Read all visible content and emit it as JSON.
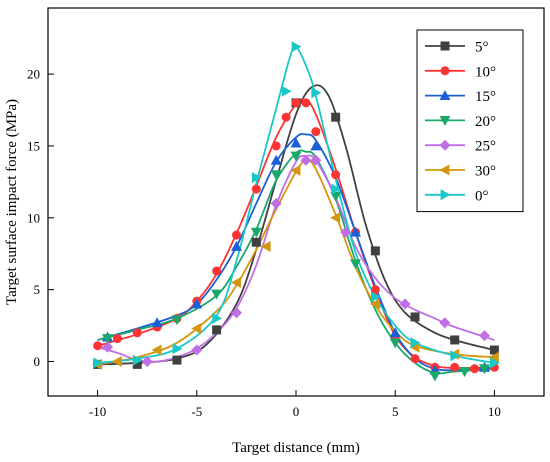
{
  "chart_data": {
    "type": "line",
    "title": "",
    "xlabel": "Target distance (mm)",
    "ylabel": "Target surface impact force (MPa)",
    "xlim": [
      -12.5,
      12.5
    ],
    "ylim": [
      -2.4,
      24.6
    ],
    "xticks": [
      -10,
      -5,
      0,
      5,
      10
    ],
    "yticks": [
      0,
      5,
      10,
      15,
      20
    ],
    "grid": false,
    "legend_position": "top-right",
    "series": [
      {
        "name": "5°",
        "color": "#404040",
        "marker": "square",
        "points": [
          [
            -10,
            -0.2
          ],
          [
            -8,
            -0.2
          ],
          [
            -6,
            0.1
          ],
          [
            -4,
            2.2
          ],
          [
            -2,
            8.3
          ],
          [
            0,
            18
          ],
          [
            2,
            17
          ],
          [
            4,
            7.7
          ],
          [
            6,
            3.1
          ],
          [
            8,
            1.5
          ],
          [
            10,
            0.8
          ]
        ],
        "curve": [
          [
            -10,
            -0.2
          ],
          [
            -8,
            -0.1
          ],
          [
            -6,
            0.2
          ],
          [
            -4.5,
            1.2
          ],
          [
            -3,
            4
          ],
          [
            -2,
            7.8
          ],
          [
            -1,
            12.6
          ],
          [
            0,
            17.2
          ],
          [
            0.8,
            19.1
          ],
          [
            1.6,
            18.6
          ],
          [
            2.5,
            15
          ],
          [
            3.5,
            9.6
          ],
          [
            4.5,
            5.6
          ],
          [
            5.5,
            3.4
          ],
          [
            7,
            2
          ],
          [
            8.5,
            1.3
          ],
          [
            10,
            0.8
          ]
        ]
      },
      {
        "name": "10°",
        "color": "#ff3333",
        "marker": "circle",
        "points": [
          [
            -10,
            1.1
          ],
          [
            -9,
            1.6
          ],
          [
            -8,
            2
          ],
          [
            -7,
            2.4
          ],
          [
            -6,
            3
          ],
          [
            -5,
            4.2
          ],
          [
            -4,
            6.3
          ],
          [
            -3,
            8.8
          ],
          [
            -2,
            12
          ],
          [
            -1,
            15
          ],
          [
            -0.5,
            17
          ],
          [
            0,
            18
          ],
          [
            0.5,
            18
          ],
          [
            1,
            16
          ],
          [
            2,
            13
          ],
          [
            3,
            9
          ],
          [
            4,
            5
          ],
          [
            5,
            1.6
          ],
          [
            6,
            0.2
          ],
          [
            7,
            -0.4
          ],
          [
            8,
            -0.4
          ],
          [
            9,
            -0.5
          ],
          [
            10,
            -0.4
          ]
        ],
        "curve": [
          [
            -10,
            1.1
          ],
          [
            -8,
            1.9
          ],
          [
            -6,
            3
          ],
          [
            -5,
            4.2
          ],
          [
            -4,
            6.1
          ],
          [
            -3,
            8.9
          ],
          [
            -2,
            12.2
          ],
          [
            -1,
            15.6
          ],
          [
            0,
            17.9
          ],
          [
            0.5,
            18.2
          ],
          [
            1,
            17.2
          ],
          [
            2,
            13.4
          ],
          [
            3,
            9
          ],
          [
            4,
            5
          ],
          [
            5,
            1.8
          ],
          [
            6,
            0.3
          ],
          [
            7,
            -0.3
          ],
          [
            8,
            -0.45
          ],
          [
            10,
            -0.4
          ]
        ]
      },
      {
        "name": "15°",
        "color": "#1a5fd6",
        "marker": "triangle-up",
        "points": [
          [
            -9.5,
            1.7
          ],
          [
            -7,
            2.7
          ],
          [
            -5,
            4
          ],
          [
            -3,
            8
          ],
          [
            -1,
            14
          ],
          [
            0,
            15.2
          ],
          [
            1,
            15
          ],
          [
            3,
            9
          ],
          [
            5,
            2
          ],
          [
            7,
            -0.6
          ],
          [
            9.5,
            -0.4
          ]
        ],
        "curve": [
          [
            -10,
            1.5
          ],
          [
            -8,
            2.3
          ],
          [
            -6,
            3.2
          ],
          [
            -5,
            4
          ],
          [
            -4,
            5.7
          ],
          [
            -3,
            8
          ],
          [
            -2,
            11
          ],
          [
            -1,
            13.9
          ],
          [
            0,
            15.6
          ],
          [
            0.5,
            15.8
          ],
          [
            1,
            15.4
          ],
          [
            2,
            12.8
          ],
          [
            3,
            9
          ],
          [
            4,
            5.2
          ],
          [
            5,
            2
          ],
          [
            6,
            0.2
          ],
          [
            7,
            -0.5
          ],
          [
            8,
            -0.6
          ],
          [
            10,
            -0.4
          ]
        ]
      },
      {
        "name": "20°",
        "color": "#1aa86a",
        "marker": "triangle-down",
        "points": [
          [
            -9.5,
            1.6
          ],
          [
            -6,
            2.9
          ],
          [
            -4,
            4.7
          ],
          [
            -2,
            9
          ],
          [
            -1,
            13
          ],
          [
            0,
            14.3
          ],
          [
            2,
            11.5
          ],
          [
            3,
            6.8
          ],
          [
            5,
            1.3
          ],
          [
            7,
            -1
          ],
          [
            8.5,
            -0.7
          ],
          [
            9.5,
            -0.5
          ]
        ],
        "curve": [
          [
            -10,
            1.5
          ],
          [
            -8,
            2.2
          ],
          [
            -6,
            3
          ],
          [
            -4,
            4.6
          ],
          [
            -3,
            6.6
          ],
          [
            -2,
            9.2
          ],
          [
            -1,
            12.6
          ],
          [
            0,
            14.5
          ],
          [
            0.5,
            14.6
          ],
          [
            1,
            14.2
          ],
          [
            2,
            11.3
          ],
          [
            3,
            7
          ],
          [
            4,
            3.6
          ],
          [
            5,
            1.3
          ],
          [
            6,
            -0.1
          ],
          [
            7,
            -0.8
          ],
          [
            8,
            -0.7
          ],
          [
            10,
            -0.5
          ]
        ]
      },
      {
        "name": "25°",
        "color": "#c06ee6",
        "marker": "diamond",
        "points": [
          [
            -9.5,
            1
          ],
          [
            -7.5,
            0
          ],
          [
            -5,
            0.8
          ],
          [
            -3,
            3.4
          ],
          [
            -1,
            11
          ],
          [
            0.5,
            14
          ],
          [
            1,
            14
          ],
          [
            2.5,
            9
          ],
          [
            5.5,
            4
          ],
          [
            7.5,
            2.7
          ],
          [
            9.5,
            1.8
          ]
        ],
        "curve": [
          [
            -10,
            1
          ],
          [
            -9,
            0.6
          ],
          [
            -8,
            0.1
          ],
          [
            -7,
            0
          ],
          [
            -6,
            0.3
          ],
          [
            -5,
            0.9
          ],
          [
            -4,
            2
          ],
          [
            -3,
            3.7
          ],
          [
            -2,
            6.7
          ],
          [
            -1,
            10.9
          ],
          [
            0,
            13.9
          ],
          [
            0.5,
            14.3
          ],
          [
            1,
            14
          ],
          [
            2,
            11.4
          ],
          [
            3,
            8
          ],
          [
            4,
            5.8
          ],
          [
            5,
            4.4
          ],
          [
            6,
            3.6
          ],
          [
            7,
            3
          ],
          [
            8,
            2.4
          ],
          [
            10,
            1.5
          ]
        ]
      },
      {
        "name": "30°",
        "color": "#d4960e",
        "marker": "triangle-left",
        "points": [
          [
            -10,
            -0.2
          ],
          [
            -9,
            0
          ],
          [
            -7,
            0.8
          ],
          [
            -5,
            2.3
          ],
          [
            -3,
            5.5
          ],
          [
            -1.5,
            8
          ],
          [
            0,
            13.3
          ],
          [
            2,
            10
          ],
          [
            4,
            4
          ],
          [
            6,
            1
          ],
          [
            8,
            0.5
          ],
          [
            10,
            0.3
          ]
        ],
        "curve": [
          [
            -10,
            -0.2
          ],
          [
            -8,
            0.3
          ],
          [
            -6,
            1.3
          ],
          [
            -4,
            3.5
          ],
          [
            -3,
            5.3
          ],
          [
            -2,
            7.8
          ],
          [
            -1,
            10.6
          ],
          [
            0,
            13.2
          ],
          [
            0.5,
            14
          ],
          [
            1,
            13.4
          ],
          [
            2,
            10.2
          ],
          [
            3,
            6.6
          ],
          [
            4,
            3.9
          ],
          [
            5,
            2.1
          ],
          [
            6,
            1.1
          ],
          [
            8,
            0.5
          ],
          [
            10,
            0.3
          ]
        ]
      },
      {
        "name": "0°",
        "color": "#19c7c7",
        "marker": "triangle-right",
        "points": [
          [
            -10,
            -0.1
          ],
          [
            -8,
            0.1
          ],
          [
            -6,
            0.9
          ],
          [
            -4,
            3
          ],
          [
            -2,
            12.8
          ],
          [
            -0.5,
            18.8
          ],
          [
            0,
            21.9
          ],
          [
            1,
            18.7
          ],
          [
            2,
            12
          ],
          [
            4,
            4.5
          ],
          [
            6,
            1.3
          ],
          [
            8,
            0.4
          ],
          [
            10,
            -0.1
          ]
        ],
        "curve": [
          [
            -10,
            -0.1
          ],
          [
            -8,
            0.2
          ],
          [
            -6,
            0.9
          ],
          [
            -4,
            3.2
          ],
          [
            -3,
            7
          ],
          [
            -2,
            12.4
          ],
          [
            -1,
            17.6
          ],
          [
            -0.3,
            21.2
          ],
          [
            0,
            21.9
          ],
          [
            0.5,
            20.6
          ],
          [
            1,
            18.5
          ],
          [
            2,
            12.7
          ],
          [
            3,
            7.6
          ],
          [
            4,
            4.5
          ],
          [
            5,
            2.5
          ],
          [
            6,
            1.3
          ],
          [
            8,
            0.4
          ],
          [
            10,
            -0.1
          ]
        ]
      }
    ]
  }
}
